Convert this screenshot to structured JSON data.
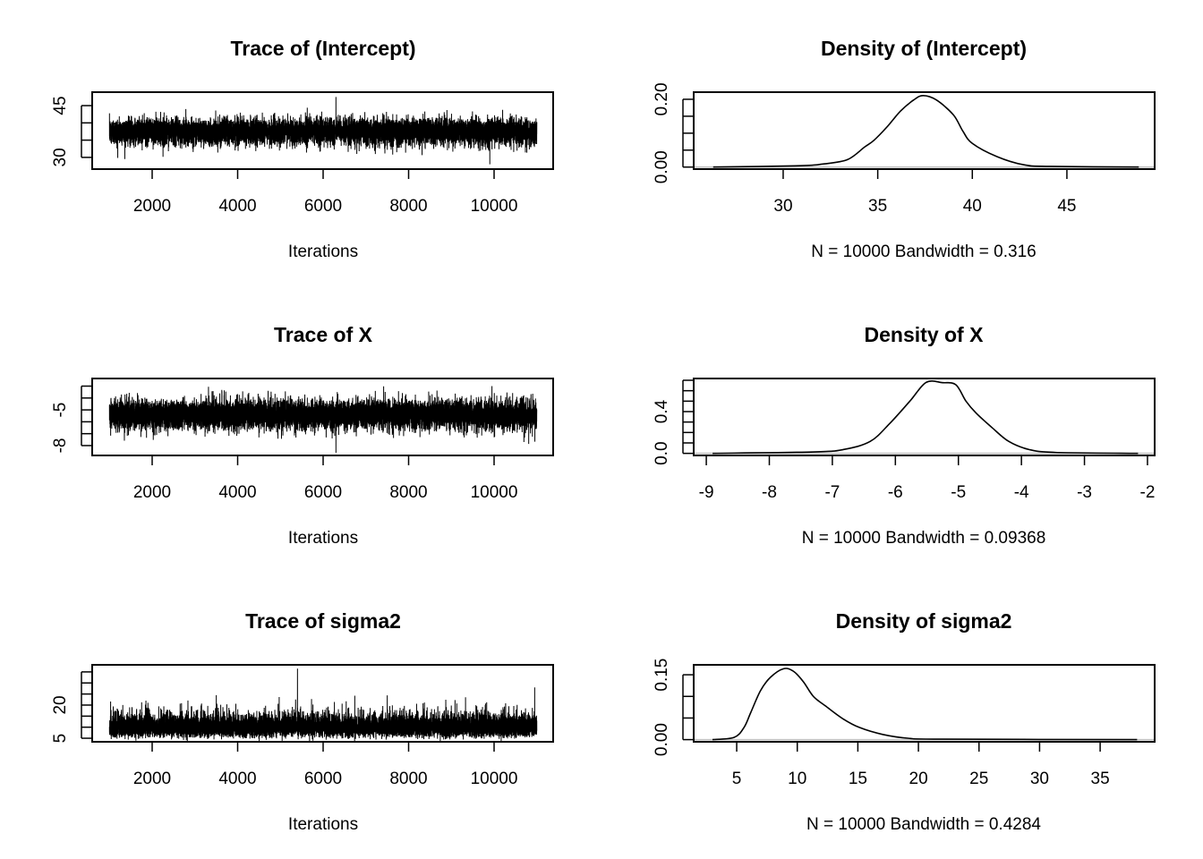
{
  "chart_data": [
    {
      "type": "line",
      "title": "Trace of (Intercept)",
      "xlabel": "Iterations",
      "x_range": [
        1001,
        11000
      ],
      "x_ticks": [
        2000,
        4000,
        6000,
        8000,
        10000
      ],
      "x_tick_labels": [
        "2000",
        "4000",
        "6000",
        "8000",
        "10000"
      ],
      "ylim": [
        26.6,
        48.9
      ],
      "y_ticks": [
        30,
        35,
        40,
        45
      ],
      "y_tick_labels": [
        "30",
        "",
        "",
        "45"
      ]
    },
    {
      "type": "line",
      "title": "Density of (Intercept)",
      "xlabel": "N = 10000   Bandwidth = 0.316",
      "xlim": [
        25.27,
        49.64
      ],
      "ylim": [
        -0.006,
        0.221
      ],
      "x_ticks": [
        30,
        35,
        40,
        45
      ],
      "x_tick_labels": [
        "30",
        "35",
        "40",
        "45"
      ],
      "y_ticks": [
        0,
        0.05,
        0.1,
        0.15,
        0.2
      ],
      "y_tick_labels": [
        "0.00",
        "",
        "",
        "",
        "0.20"
      ],
      "x": [
        26.3,
        30.9,
        32.1,
        33.4,
        34.3,
        34.8,
        35.5,
        36.2,
        36.9,
        37.4,
        38.1,
        39.0,
        39.5,
        40.0,
        41.3,
        42.7,
        44.1,
        48.8
      ],
      "y": [
        0,
        0.004,
        0.009,
        0.022,
        0.059,
        0.079,
        0.119,
        0.165,
        0.198,
        0.211,
        0.198,
        0.154,
        0.106,
        0.07,
        0.031,
        0.007,
        0.002,
        0
      ]
    },
    {
      "type": "line",
      "title": "Trace of X",
      "xlabel": "Iterations",
      "x_range": [
        1001,
        11000
      ],
      "x_ticks": [
        2000,
        4000,
        6000,
        8000,
        10000
      ],
      "x_tick_labels": [
        "2000",
        "4000",
        "6000",
        "8000",
        "10000"
      ],
      "ylim": [
        -8.83,
        -2.36
      ],
      "y_ticks": [
        -8,
        -7,
        -6,
        -5,
        -4,
        -3
      ],
      "y_tick_labels": [
        "-8",
        "",
        "",
        "-5",
        "",
        ""
      ]
    },
    {
      "type": "line",
      "title": "Density of X",
      "xlabel": "N = 10000   Bandwidth = 0.09368",
      "xlim": [
        -9.2,
        -1.886
      ],
      "ylim": [
        -0.02,
        0.717
      ],
      "x_ticks": [
        -9,
        -8,
        -7,
        -6,
        -5,
        -4,
        -3,
        -2
      ],
      "x_tick_labels": [
        "-9",
        "-8",
        "-7",
        "-6",
        "-5",
        "-4",
        "-3",
        "-2"
      ],
      "y_ticks": [
        0,
        0.1,
        0.2,
        0.3,
        0.4,
        0.5,
        0.6,
        0.7
      ],
      "y_tick_labels": [
        "0.0",
        "",
        "",
        "",
        "0.4",
        "",
        "",
        ""
      ],
      "x": [
        -8.9,
        -7.29,
        -6.82,
        -6.4,
        -6.09,
        -5.77,
        -5.51,
        -5.25,
        -5.04,
        -4.88,
        -4.72,
        -4.46,
        -4.2,
        -3.88,
        -3.46,
        -2.15
      ],
      "y": [
        0,
        0.014,
        0.037,
        0.114,
        0.286,
        0.5,
        0.68,
        0.677,
        0.657,
        0.5,
        0.386,
        0.243,
        0.114,
        0.037,
        0.009,
        0
      ]
    },
    {
      "type": "line",
      "title": "Trace of sigma2",
      "xlabel": "Iterations",
      "x_range": [
        1001,
        11000
      ],
      "x_ticks": [
        2000,
        4000,
        6000,
        8000,
        10000
      ],
      "x_tick_labels": [
        "2000",
        "4000",
        "6000",
        "8000",
        "10000"
      ],
      "ylim": [
        3.4,
        38.2
      ],
      "y_ticks": [
        5,
        10,
        15,
        20,
        25,
        30,
        35
      ],
      "y_tick_labels": [
        "5",
        "",
        "",
        "20",
        "",
        "",
        ""
      ]
    },
    {
      "type": "line",
      "title": "Density of sigma2",
      "xlabel": "N = 10000   Bandwidth = 0.4284",
      "xlim": [
        1.45,
        39.5
      ],
      "ylim": [
        -0.005,
        0.173
      ],
      "x_ticks": [
        5,
        10,
        15,
        20,
        25,
        30,
        35
      ],
      "x_tick_labels": [
        "5",
        "10",
        "15",
        "20",
        "25",
        "30",
        "35"
      ],
      "y_ticks": [
        0,
        0.05,
        0.1,
        0.15
      ],
      "y_tick_labels": [
        "0.00",
        "",
        "",
        "0.15"
      ],
      "x": [
        3.0,
        4.78,
        5.6,
        6.15,
        6.96,
        7.78,
        8.87,
        9.69,
        10.5,
        11.33,
        12.42,
        13.78,
        15.14,
        17.05,
        19.2,
        22.0,
        38.05
      ],
      "y": [
        0,
        0.005,
        0.028,
        0.062,
        0.113,
        0.144,
        0.164,
        0.158,
        0.134,
        0.1,
        0.076,
        0.048,
        0.028,
        0.012,
        0.003,
        0.001,
        0
      ]
    }
  ]
}
